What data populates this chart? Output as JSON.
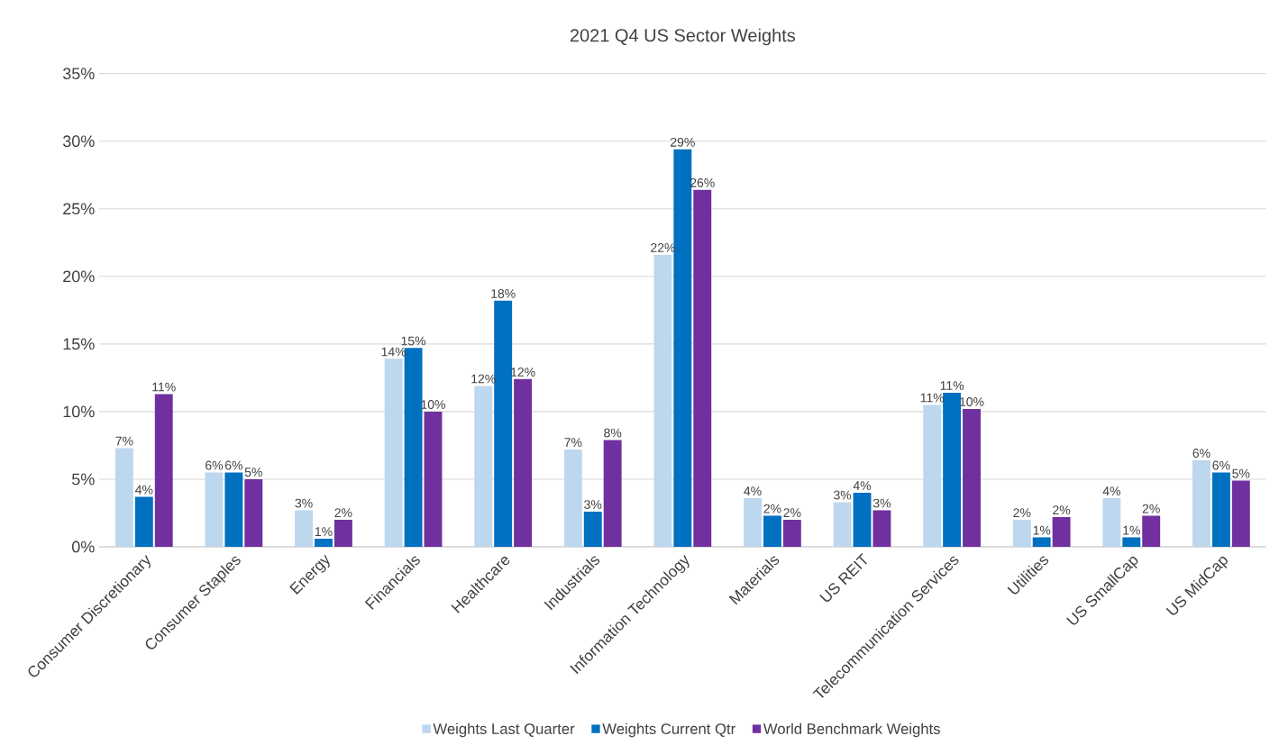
{
  "chart_data": {
    "type": "bar",
    "title": "2021 Q4 US Sector Weights",
    "categories": [
      "Consumer Discretionary",
      "Consumer Staples",
      "Energy",
      "Financials",
      "Healthcare",
      "Industrials",
      "Information Technology",
      "Materials",
      "US REIT",
      "Telecommunication Services",
      "Utilities",
      "US SmallCap",
      "US MidCap"
    ],
    "series": [
      {
        "name": "Weights Last Quarter",
        "color": "#bdd7ee",
        "values": [
          7.3,
          5.5,
          2.7,
          13.9,
          11.9,
          7.2,
          21.6,
          3.6,
          3.3,
          10.5,
          2.0,
          3.6,
          6.4
        ],
        "value_labels": [
          "7%",
          "6%",
          "3%",
          "14%",
          "12%",
          "7%",
          "22%",
          "4%",
          "3%",
          "11%",
          "2%",
          "4%",
          "6%"
        ]
      },
      {
        "name": "Weights Current Qtr",
        "color": "#0070c0",
        "values": [
          3.7,
          5.5,
          0.6,
          14.7,
          18.2,
          2.6,
          29.4,
          2.3,
          4.0,
          11.4,
          0.7,
          0.7,
          5.5
        ],
        "value_labels": [
          "4%",
          "6%",
          "1%",
          "15%",
          "18%",
          "3%",
          "29%",
          "2%",
          "4%",
          "11%",
          "1%",
          "1%",
          "6%"
        ]
      },
      {
        "name": "World Benchmark Weights",
        "color": "#7030a0",
        "values": [
          11.3,
          5.0,
          2.0,
          10.0,
          12.4,
          7.9,
          26.4,
          2.0,
          2.7,
          10.2,
          2.2,
          2.3,
          4.9
        ],
        "value_labels": [
          "11%",
          "5%",
          "2%",
          "10%",
          "12%",
          "8%",
          "26%",
          "2%",
          "3%",
          "10%",
          "2%",
          "2%",
          "5%"
        ]
      }
    ],
    "ylim": [
      0,
      35
    ],
    "yticks": [
      {
        "value": 0,
        "label": "0%"
      },
      {
        "value": 5,
        "label": "5%"
      },
      {
        "value": 10,
        "label": "10%"
      },
      {
        "value": 15,
        "label": "15%"
      },
      {
        "value": 20,
        "label": "20%"
      },
      {
        "value": 25,
        "label": "25%"
      },
      {
        "value": 30,
        "label": "30%"
      },
      {
        "value": 35,
        "label": "35%"
      }
    ],
    "grid": "y",
    "legend": "bottom"
  }
}
